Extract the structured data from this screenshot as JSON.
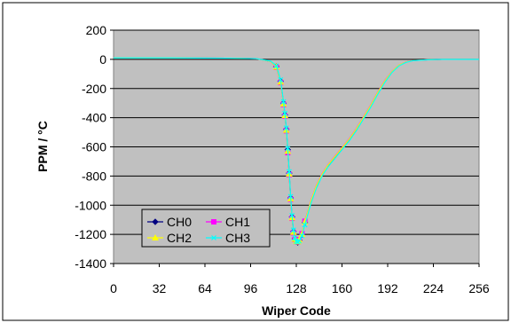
{
  "chart_data": {
    "type": "line",
    "title": "",
    "xlabel": "Wiper Code",
    "ylabel": "PPM / °C",
    "xlim": [
      0,
      256
    ],
    "ylim": [
      -1400,
      200
    ],
    "xticks": [
      0,
      32,
      64,
      96,
      128,
      160,
      192,
      224,
      256
    ],
    "yticks": [
      200,
      0,
      -200,
      -400,
      -600,
      -800,
      -1000,
      -1200,
      -1400
    ],
    "grid": "horizontal",
    "legend_position": "bottom-left",
    "plot_background": "#c0c0c0",
    "series": [
      {
        "name": "CH0",
        "color": "#000080",
        "marker": "diamond",
        "x": [
          0,
          40,
          80,
          100,
          110,
          114,
          117,
          119,
          120,
          121,
          122,
          123,
          124,
          125,
          126,
          127,
          128,
          129,
          130,
          132,
          134,
          138,
          142,
          146,
          150,
          155,
          160,
          165,
          170,
          175,
          180,
          185,
          190,
          195,
          200,
          205,
          210,
          220,
          230,
          240,
          256
        ],
        "y": [
          10,
          10,
          8,
          5,
          -15,
          -50,
          -150,
          -300,
          -380,
          -480,
          -620,
          -780,
          -950,
          -1080,
          -1180,
          -1230,
          -1250,
          -1255,
          -1240,
          -1200,
          -1120,
          -980,
          -870,
          -790,
          -730,
          -670,
          -610,
          -550,
          -480,
          -400,
          -320,
          -230,
          -150,
          -85,
          -40,
          -18,
          -8,
          -3,
          0,
          0,
          0
        ]
      },
      {
        "name": "CH1",
        "color": "#ff00ff",
        "marker": "square",
        "x": [
          0,
          40,
          80,
          100,
          110,
          114,
          117,
          119,
          120,
          121,
          122,
          123,
          124,
          125,
          126,
          127,
          128,
          129,
          130,
          132,
          134,
          138,
          142,
          146,
          150,
          155,
          160,
          165,
          170,
          175,
          180,
          185,
          190,
          195,
          200,
          205,
          210,
          220,
          230,
          240,
          256
        ],
        "y": [
          10,
          10,
          8,
          5,
          -15,
          -55,
          -160,
          -310,
          -390,
          -490,
          -640,
          -790,
          -960,
          -1090,
          -1190,
          -1235,
          -1250,
          -1252,
          -1235,
          -1195,
          -1110,
          -975,
          -865,
          -785,
          -725,
          -665,
          -605,
          -545,
          -475,
          -395,
          -315,
          -225,
          -145,
          -82,
          -38,
          -17,
          -8,
          -3,
          0,
          0,
          0
        ]
      },
      {
        "name": "CH2",
        "color": "#ffff00",
        "marker": "triangle",
        "x": [
          0,
          40,
          80,
          100,
          110,
          114,
          117,
          119,
          120,
          121,
          122,
          123,
          124,
          125,
          126,
          127,
          128,
          129,
          130,
          132,
          134,
          138,
          142,
          146,
          150,
          155,
          160,
          165,
          170,
          175,
          180,
          185,
          190,
          195,
          200,
          205,
          210,
          220,
          230,
          240,
          256
        ],
        "y": [
          10,
          10,
          8,
          5,
          -15,
          -52,
          -155,
          -305,
          -385,
          -485,
          -630,
          -785,
          -955,
          -1085,
          -1185,
          -1232,
          -1248,
          -1250,
          -1238,
          -1198,
          -1115,
          -978,
          -868,
          -788,
          -728,
          -668,
          -608,
          -548,
          -478,
          -398,
          -318,
          -228,
          -148,
          -84,
          -39,
          -18,
          -8,
          -3,
          0,
          0,
          0
        ]
      },
      {
        "name": "CH3",
        "color": "#00ffff",
        "marker": "x",
        "x": [
          0,
          40,
          80,
          100,
          110,
          114,
          117,
          119,
          120,
          121,
          122,
          123,
          124,
          125,
          126,
          127,
          128,
          129,
          130,
          132,
          134,
          138,
          142,
          146,
          150,
          155,
          160,
          165,
          170,
          175,
          180,
          185,
          190,
          195,
          200,
          205,
          210,
          220,
          230,
          240,
          256
        ],
        "y": [
          10,
          10,
          8,
          5,
          -12,
          -45,
          -140,
          -290,
          -370,
          -470,
          -610,
          -770,
          -940,
          -1070,
          -1170,
          -1225,
          -1248,
          -1252,
          -1245,
          -1210,
          -1135,
          -995,
          -885,
          -800,
          -740,
          -680,
          -620,
          -560,
          -490,
          -410,
          -330,
          -240,
          -158,
          -90,
          -44,
          -20,
          -9,
          -3,
          0,
          0,
          0
        ]
      }
    ]
  }
}
